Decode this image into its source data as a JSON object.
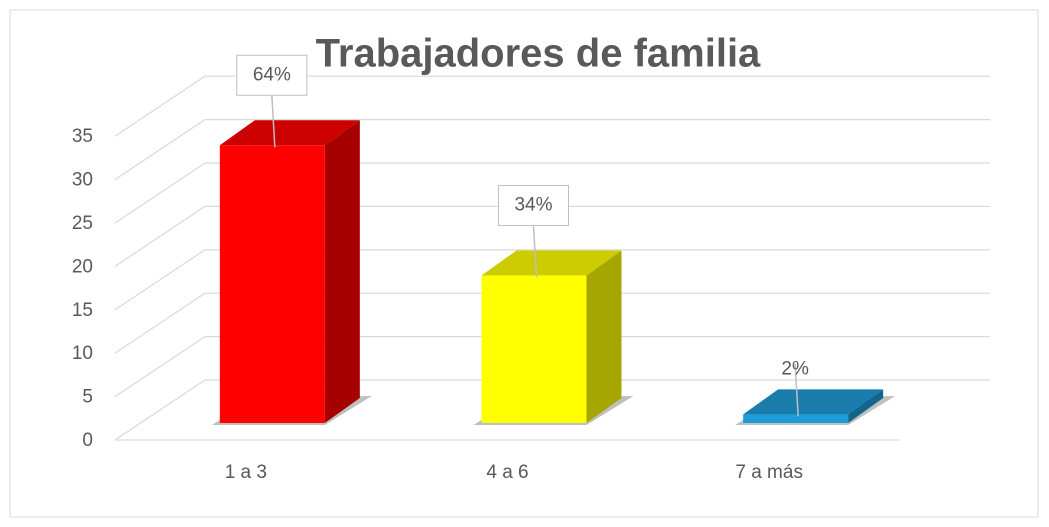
{
  "chart_data": {
    "type": "bar3d",
    "title": "Trabajadores de familia",
    "categories": [
      "1 a 3",
      "4 a 6",
      "7 a más"
    ],
    "values": [
      32,
      17,
      1
    ],
    "percent_labels": [
      "64%",
      "34%",
      "2%"
    ],
    "colors": [
      "#ff0000",
      "#ffff00",
      "#1e9bd7"
    ],
    "ylim": [
      0,
      35
    ],
    "yticks": [
      0,
      5,
      10,
      15,
      20,
      25,
      30,
      35
    ],
    "grid": true
  }
}
